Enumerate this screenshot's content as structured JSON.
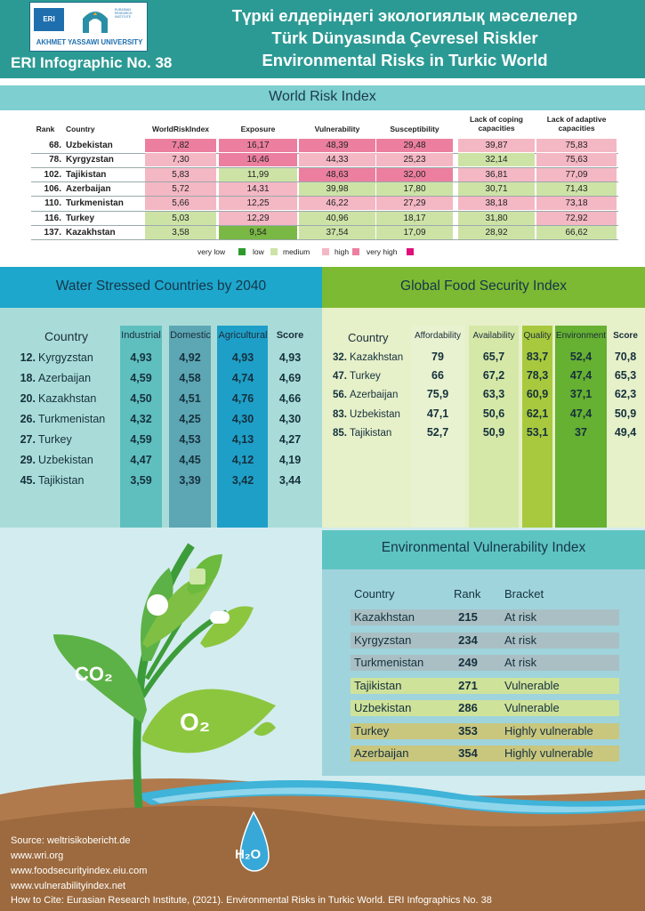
{
  "header": {
    "logo_abbr": "ERI",
    "logo_institute": "EURASIAN RESEARCH INSTITUTE",
    "logo_university": "AKHMET YASSAWI UNIVERSITY",
    "infographic_no": "ERI Infographic No. 38",
    "title_kz": "Түркі елдеріндегі экологиялық мәселелер",
    "title_tr": "Türk Dünyasında Çevresel Riskler",
    "title_en": "Environmental Risks in Turkic World"
  },
  "wri": {
    "title": "World Risk Index",
    "headers": {
      "rank": "Rank",
      "country": "Country",
      "wri": "WorldRiskIndex",
      "exposure": "Exposure",
      "vulnerability": "Vulnerability",
      "susceptibility": "Susceptibility",
      "coping": "Lack of coping capacities",
      "adaptive": "Lack of adaptive capacities"
    },
    "rows": [
      {
        "rank": "68.",
        "country": "Uzbekistan",
        "cells": [
          "7,82",
          "16,17",
          "48,39",
          "29,48",
          "39,87",
          "75,83"
        ],
        "levels": [
          "vhigh",
          "vhigh",
          "vhigh",
          "vhigh",
          "high",
          "high"
        ]
      },
      {
        "rank": "78.",
        "country": "Kyrgyzstan",
        "cells": [
          "7,30",
          "16,46",
          "44,33",
          "25,23",
          "32,14",
          "75,63"
        ],
        "levels": [
          "high",
          "vhigh",
          "high",
          "high",
          "medium",
          "high"
        ]
      },
      {
        "rank": "102.",
        "country": "Tajikistan",
        "cells": [
          "5,83",
          "11,99",
          "48,63",
          "32,00",
          "36,81",
          "77,09"
        ],
        "levels": [
          "high",
          "medium",
          "vhigh",
          "vhigh",
          "high",
          "high"
        ]
      },
      {
        "rank": "106.",
        "country": "Azerbaijan",
        "cells": [
          "5,72",
          "14,31",
          "39,98",
          "17,80",
          "30,71",
          "71,43"
        ],
        "levels": [
          "high",
          "high",
          "medium",
          "medium",
          "medium",
          "medium"
        ]
      },
      {
        "rank": "110.",
        "country": "Turkmenistan",
        "cells": [
          "5,66",
          "12,25",
          "46,22",
          "27,29",
          "38,18",
          "73,18"
        ],
        "levels": [
          "high",
          "high",
          "high",
          "high",
          "high",
          "high"
        ]
      },
      {
        "rank": "116.",
        "country": "Turkey",
        "cells": [
          "5,03",
          "12,29",
          "40,96",
          "18,17",
          "31,80",
          "72,92"
        ],
        "levels": [
          "medium",
          "high",
          "medium",
          "medium",
          "medium",
          "high"
        ]
      },
      {
        "rank": "137.",
        "country": "Kazakhstan",
        "cells": [
          "3,58",
          "9,54",
          "37,54",
          "17,09",
          "28,92",
          "66,62"
        ],
        "levels": [
          "medium",
          "low",
          "medium",
          "medium",
          "medium",
          "medium"
        ]
      }
    ],
    "legend": [
      {
        "label": "very low",
        "color": "#2e9a2c"
      },
      {
        "label": "low",
        "color": "#79b844"
      },
      {
        "label": "medium",
        "color": "#cde3a6"
      },
      {
        "label": "high",
        "color": "#f5b6c5"
      },
      {
        "label": "very high",
        "color": "#e0107a"
      }
    ],
    "colors": {
      "vlow": "#2e9a2c",
      "low": "#79b844",
      "medium": "#cde3a6",
      "high": "#f4b7c4",
      "vhigh": "#ec7f9f"
    }
  },
  "water": {
    "title": "Water Stressed Countries by 2040",
    "headers": {
      "country": "Country",
      "industrial": "Industrial",
      "domestic": "Domestic",
      "agricultural": "Agricultural",
      "score": "Score"
    },
    "rows": [
      {
        "rank": "12.",
        "country": "Kyrgyzstan",
        "vals": [
          "4,93",
          "4,92",
          "4,93",
          "4,93"
        ]
      },
      {
        "rank": "18.",
        "country": "Azerbaijan",
        "vals": [
          "4,59",
          "4,58",
          "4,74",
          "4,69"
        ]
      },
      {
        "rank": "20.",
        "country": "Kazakhstan",
        "vals": [
          "4,50",
          "4,51",
          "4,76",
          "4,66"
        ]
      },
      {
        "rank": "26.",
        "country": "Turkmenistan",
        "vals": [
          "4,32",
          "4,25",
          "4,30",
          "4,30"
        ]
      },
      {
        "rank": "27.",
        "country": "Turkey",
        "vals": [
          "4,59",
          "4,53",
          "4,13",
          "4,27"
        ]
      },
      {
        "rank": "29.",
        "country": "Uzbekistan",
        "vals": [
          "4,47",
          "4,45",
          "4,12",
          "4,19"
        ]
      },
      {
        "rank": "45.",
        "country": "Tajikistan",
        "vals": [
          "3,59",
          "3,39",
          "3,42",
          "3,44"
        ]
      }
    ]
  },
  "food": {
    "title": "Global Food Security Index",
    "headers": {
      "country": "Country",
      "affordability": "Affordability",
      "availability": "Availability",
      "quality": "Quality",
      "environment": "Environment",
      "score": "Score"
    },
    "rows": [
      {
        "rank": "32.",
        "country": "Kazakhstan",
        "vals": [
          "79",
          "65,7",
          "83,7",
          "52,4",
          "70,8"
        ]
      },
      {
        "rank": "47.",
        "country": "Turkey",
        "vals": [
          "66",
          "67,2",
          "78,3",
          "47,4",
          "65,3"
        ]
      },
      {
        "rank": "56.",
        "country": "Azerbaijan",
        "vals": [
          "75,9",
          "63,3",
          "60,9",
          "37,1",
          "62,3"
        ]
      },
      {
        "rank": "83.",
        "country": "Uzbekistan",
        "vals": [
          "47,1",
          "50,6",
          "62,1",
          "47,4",
          "50,9"
        ]
      },
      {
        "rank": "85.",
        "country": "Tajikistan",
        "vals": [
          "52,7",
          "50,9",
          "53,1",
          "37",
          "49,4"
        ]
      }
    ]
  },
  "evi": {
    "title": "Environmental Vulnerability Index",
    "headers": {
      "country": "Country",
      "rank": "Rank",
      "bracket": "Bracket"
    },
    "rows": [
      {
        "country": "Kazakhstan",
        "rank": "215",
        "bracket": "At risk",
        "color": "#a9bfc4"
      },
      {
        "country": "Kyrgyzstan",
        "rank": "234",
        "bracket": "At risk",
        "color": "#a9bfc4"
      },
      {
        "country": "Turkmenistan",
        "rank": "249",
        "bracket": "At risk",
        "color": "#a9bfc4"
      },
      {
        "country": "Tajikistan",
        "rank": "271",
        "bracket": "Vulnerable",
        "color": "#cfe29a"
      },
      {
        "country": "Uzbekistan",
        "rank": "286",
        "bracket": "Vulnerable",
        "color": "#cfe29a"
      },
      {
        "country": "Turkey",
        "rank": "353",
        "bracket": "Highly vulnerable",
        "color": "#c9c67e"
      },
      {
        "country": "Azerbaijan",
        "rank": "354",
        "bracket": "Highly vulnerable",
        "color": "#c9c67e"
      }
    ]
  },
  "illustration": {
    "co2": "CO₂",
    "o2": "O₂",
    "h2o": "H₂O"
  },
  "footer": {
    "source": "Source: weltrisikobericht.de",
    "s2": "www.wri.org",
    "s3": "www.foodsecurityindex.eiu.com",
    "s4": "www.vulnerabilityindex.net",
    "cite": "How to Cite: Eurasian Research Institute, (2021). Environmental Risks in Turkic World. ERI Infographics No. 38"
  }
}
